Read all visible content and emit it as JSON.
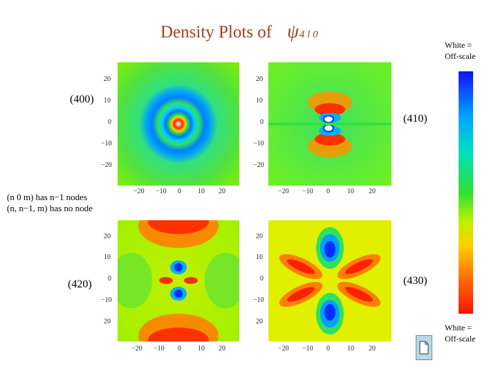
{
  "title": {
    "text": "Density Plots of",
    "psi": "ψ",
    "sub": "4 l 0"
  },
  "legend_top": [
    "White =",
    "Off-scale"
  ],
  "legend_bottom": [
    "White =",
    "Off-scale"
  ],
  "nodes_text": [
    "(n 0 m) has n−1 nodes",
    "(n, n−1, m) has no node"
  ],
  "plots": [
    {
      "label": "(400)"
    },
    {
      "label": "(410)"
    },
    {
      "label": "(420)"
    },
    {
      "label": "(430)"
    }
  ],
  "y_ticks": [
    "20",
    "10",
    "0",
    "−10",
    "−20"
  ],
  "x_ticks": [
    "−20",
    "−10",
    "0",
    "10",
    "20"
  ],
  "icons": {
    "document": "document-icon"
  }
}
